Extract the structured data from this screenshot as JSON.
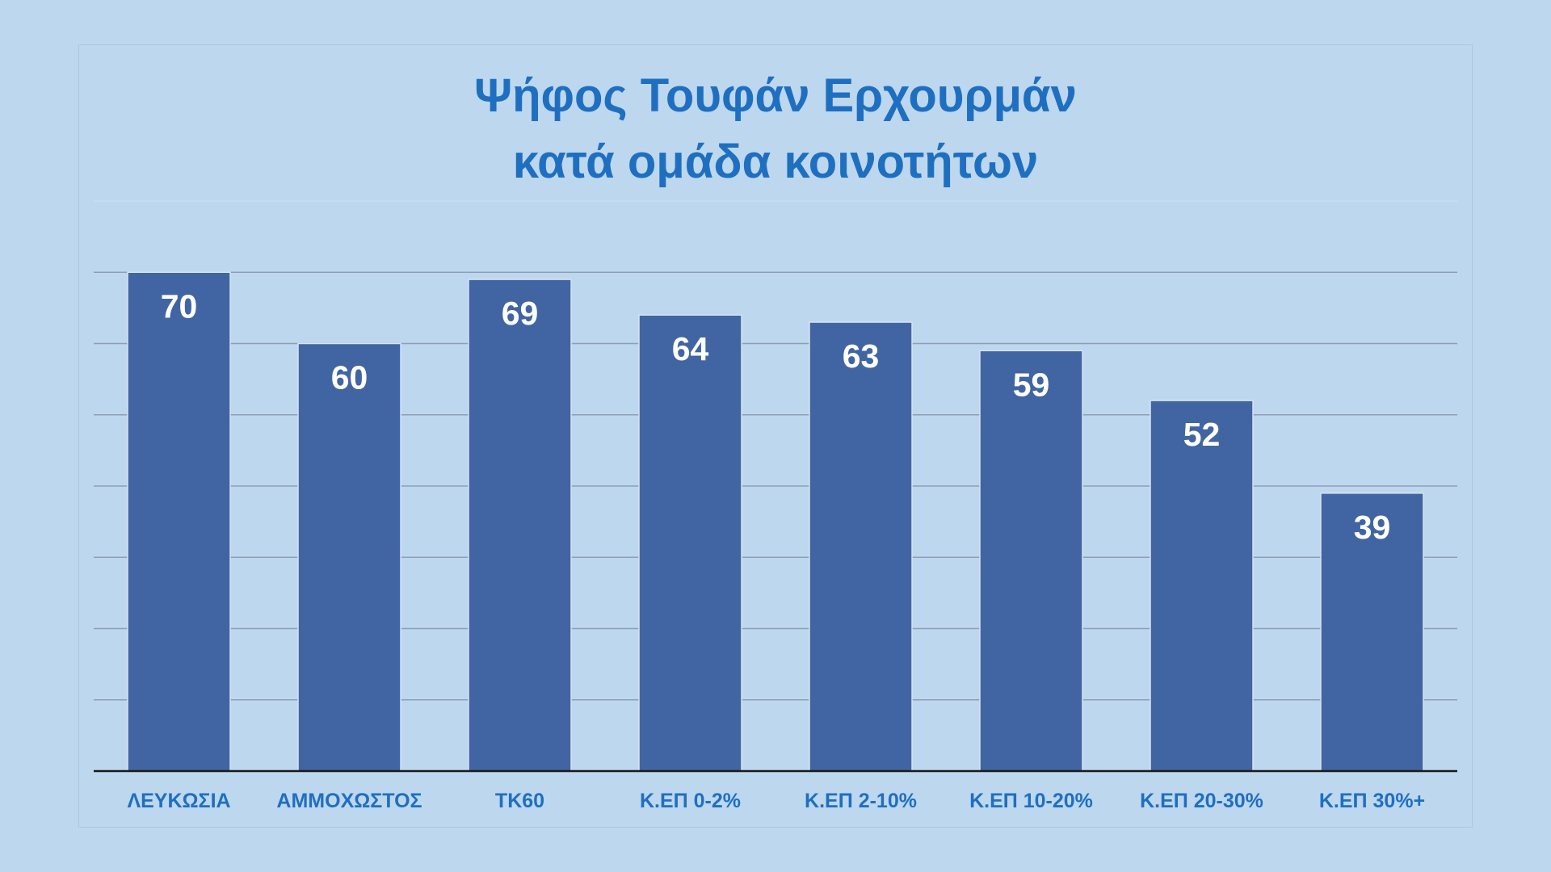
{
  "chart_data": {
    "type": "bar",
    "title_line1": "Ψήφος Τουφάν Ερχουρμάν",
    "title_line2": "κατά ομάδα κοινοτήτων",
    "categories": [
      "ΛΕΥΚΩΣΙΑ",
      "ΑΜΜΟΧΩΣΤΟΣ",
      "ΤΚ60",
      "Κ.ΕΠ 0-2%",
      "Κ.ΕΠ 2-10%",
      "Κ.ΕΠ 10-20%",
      "Κ.ΕΠ 20-30%",
      "Κ.ΕΠ 30%+"
    ],
    "values": [
      70,
      60,
      69,
      64,
      63,
      59,
      52,
      39
    ],
    "ylim": [
      0,
      80
    ],
    "grid": true,
    "bar_color": "#4165a2",
    "title_color": "#1f6fc1",
    "label_color": "#ffffff"
  }
}
